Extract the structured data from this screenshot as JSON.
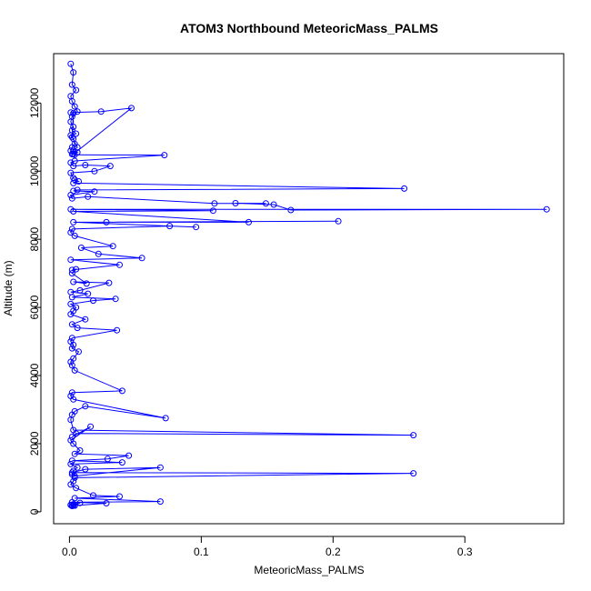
{
  "chart_data": {
    "type": "line",
    "title": "ATOM3 Northbound MeteoricMass_PALMS",
    "xlabel": "MeteoricMass_PALMS",
    "ylabel": "Altitude (m)",
    "xlim": [
      -0.012,
      0.375
    ],
    "ylim": [
      -350,
      13450
    ],
    "x_ticks": [
      0.0,
      0.1,
      0.2,
      0.3
    ],
    "x_tick_labels": [
      "0.0",
      "0.1",
      "0.2",
      "0.3"
    ],
    "y_ticks": [
      0,
      2000,
      4000,
      6000,
      8000,
      10000,
      12000
    ],
    "y_tick_labels": [
      "0",
      "2000",
      "4000",
      "6000",
      "8000",
      "10000",
      "12000"
    ],
    "grid": false,
    "series": [
      {
        "color": "#0000ff",
        "marker": "open-circle",
        "x": [
          0.001,
          0.003,
          0.002,
          0.005,
          0.001,
          0.002,
          0.004,
          0.006,
          0.002,
          0.001,
          0.003,
          0.002,
          0.005,
          0.001,
          0.003,
          0.004,
          0.002,
          0.001,
          0.006,
          0.003,
          0.047,
          0.024,
          0.001,
          0.003,
          0.002,
          0.006,
          0.003,
          0.002,
          0.004,
          0.072,
          0.004,
          0.001,
          0.003,
          0.012,
          0.031,
          0.019,
          0.001,
          0.003,
          0.004,
          0.007,
          0.003,
          0.254,
          0.006,
          0.003,
          0.019,
          0.001,
          0.002,
          0.014,
          0.11,
          0.149,
          0.126,
          0.155,
          0.168,
          0.362,
          0.001,
          0.109,
          0.003,
          0.136,
          0.028,
          0.204,
          0.003,
          0.096,
          0.076,
          0.002,
          0.001,
          0.004,
          0.033,
          0.009,
          0.022,
          0.055,
          0.001,
          0.038,
          0.002,
          0.005,
          0.002,
          0.013,
          0.003,
          0.03,
          0.008,
          0.001,
          0.014,
          0.002,
          0.035,
          0.018,
          0.001,
          0.005,
          0.003,
          0.001,
          0.012,
          0.002,
          0.006,
          0.036,
          0.002,
          0.001,
          0.003,
          0.002,
          0.007,
          0.003,
          0.001,
          0.002,
          0.004,
          0.04,
          0.002,
          0.001,
          0.003,
          0.073,
          0.012,
          0.004,
          0.002,
          0.001,
          0.003,
          0.261,
          0.005,
          0.002,
          0.016,
          0.001,
          0.003,
          0.008,
          0.004,
          0.045,
          0.029,
          0.002,
          0.04,
          0.001,
          0.006,
          0.003,
          0.002,
          0.004,
          0.069,
          0.012,
          0.002,
          0.261,
          0.004,
          0.003,
          0.001,
          0.005,
          0.018,
          0.038,
          0.004,
          0.069,
          0.002,
          0.028,
          0.003,
          0.001,
          0.004,
          0.002,
          0.008,
          0.001,
          0.003,
          0.002
        ],
        "y": [
          13150,
          12900,
          12540,
          12380,
          12200,
          12050,
          11900,
          11750,
          11600,
          11450,
          11300,
          11200,
          11100,
          11050,
          10950,
          10800,
          10700,
          10600,
          10550,
          10500,
          11850,
          11750,
          11720,
          11700,
          11000,
          10700,
          10600,
          10500,
          10480,
          10470,
          10300,
          10250,
          10150,
          10180,
          10150,
          10000,
          9950,
          9800,
          9750,
          9700,
          9650,
          9490,
          9450,
          9420,
          9400,
          9300,
          9200,
          9250,
          9050,
          9050,
          9060,
          9020,
          8860,
          8880,
          8880,
          8840,
          8820,
          8500,
          8500,
          8530,
          8500,
          8360,
          8390,
          8300,
          8200,
          8100,
          7800,
          7750,
          7570,
          7450,
          7400,
          7250,
          7100,
          7120,
          7000,
          6700,
          6750,
          6720,
          6500,
          6450,
          6400,
          6300,
          6250,
          6200,
          6100,
          6000,
          5900,
          5800,
          5650,
          5500,
          5400,
          5330,
          5100,
          5000,
          4900,
          4800,
          4700,
          4500,
          4400,
          4300,
          4150,
          3550,
          3500,
          3400,
          3300,
          2750,
          3100,
          2950,
          2850,
          2700,
          2400,
          2250,
          2300,
          2200,
          2500,
          2100,
          2000,
          1800,
          1700,
          1650,
          1550,
          1500,
          1450,
          1400,
          1300,
          1200,
          1100,
          1050,
          1300,
          1250,
          1150,
          1130,
          1000,
          900,
          800,
          700,
          480,
          450,
          400,
          300,
          280,
          250,
          180,
          200,
          180,
          170,
          260,
          200,
          220,
          180
        ]
      }
    ]
  }
}
